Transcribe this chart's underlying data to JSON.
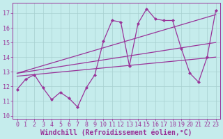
{
  "xlabel": "Windchill (Refroidissement éolien,°C)",
  "background_color": "#c5ecec",
  "grid_color": "#a8d0d0",
  "line_color": "#993399",
  "xlim": [
    -0.5,
    23.5
  ],
  "ylim": [
    9.8,
    17.7
  ],
  "yticks": [
    10,
    11,
    12,
    13,
    14,
    15,
    16,
    17
  ],
  "xticks": [
    0,
    1,
    2,
    3,
    4,
    5,
    6,
    7,
    8,
    9,
    10,
    11,
    12,
    13,
    14,
    15,
    16,
    17,
    18,
    19,
    20,
    21,
    22,
    23
  ],
  "series_jagged_x": [
    0,
    1,
    2,
    3,
    4,
    5,
    6,
    7,
    8,
    9,
    10,
    11,
    12,
    13,
    14,
    15,
    16,
    17,
    18,
    19,
    20,
    21,
    22,
    23
  ],
  "series_jagged_y": [
    11.8,
    12.5,
    12.8,
    11.9,
    11.1,
    11.6,
    11.2,
    10.6,
    11.9,
    12.8,
    15.1,
    16.5,
    16.4,
    13.4,
    16.3,
    17.3,
    16.6,
    16.5,
    16.5,
    14.6,
    12.9,
    12.3,
    14.0,
    17.2
  ],
  "line1_x": [
    0,
    23
  ],
  "line1_y": [
    12.7,
    14.0
  ],
  "line2_x": [
    0,
    23
  ],
  "line2_y": [
    12.9,
    15.0
  ],
  "line3_x": [
    0,
    23
  ],
  "line3_y": [
    12.9,
    16.9
  ],
  "font_size_tick": 6,
  "font_size_xlabel": 7,
  "marker": "D",
  "marker_size": 2,
  "line_width": 0.9
}
